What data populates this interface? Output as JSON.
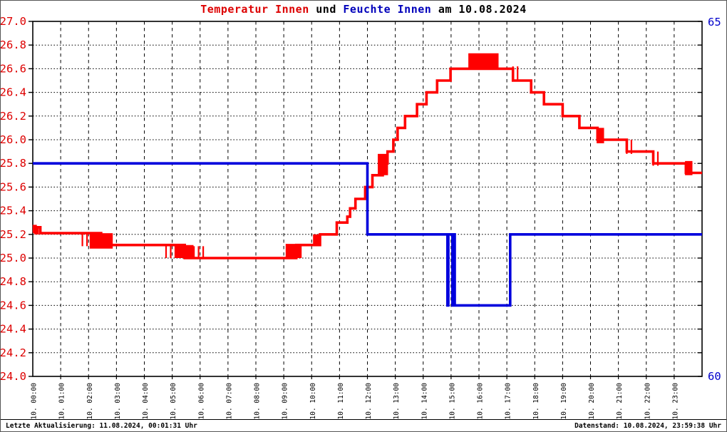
{
  "title": {
    "part1": "Temperatur Innen",
    "part2": " und ",
    "part3": "Feuchte Innen",
    "part4": " am 10.08.2024"
  },
  "footer": {
    "left": "Letzte Aktualisierung: 11.08.2024, 00:01:31 Uhr",
    "right": "Datenstand: 10.08.2024, 23:59:38 Uhr"
  },
  "colors": {
    "temp_line": "#ff0000",
    "humidity_line": "#0000dd",
    "temp_label": "#dd0000",
    "humidity_label": "#0000cc",
    "grid": "#000000",
    "frame": "#000000"
  },
  "chart_data": {
    "type": "line",
    "title": "Temperatur Innen und Feuchte Innen am 10.08.2024",
    "grid": true,
    "x_axis": {
      "unit": "hour",
      "range": [
        0,
        24
      ],
      "tick_interval_hours": 1,
      "tick_labels": [
        "10. 00:00",
        "10. 01:00",
        "10. 02:00",
        "10. 03:00",
        "10. 04:00",
        "10. 05:00",
        "10. 06:00",
        "10. 07:00",
        "10. 08:00",
        "10. 09:00",
        "10. 10:00",
        "10. 11:00",
        "10. 12:00",
        "10. 13:00",
        "10. 14:00",
        "10. 15:00",
        "10. 16:00",
        "10. 17:00",
        "10. 18:00",
        "10. 19:00",
        "10. 20:00",
        "10. 21:00",
        "10. 22:00",
        "10. 23:00"
      ]
    },
    "left_axis": {
      "series": "Temperatur Innen",
      "range": [
        24.0,
        27.0
      ],
      "tick_step": 0.2,
      "tick_labels": [
        "27.0",
        "26.8",
        "26.6",
        "26.4",
        "26.2",
        "26.0",
        "25.8",
        "25.6",
        "25.4",
        "25.2",
        "25.0",
        "24.8",
        "24.6",
        "24.4",
        "24.2",
        "24.0"
      ]
    },
    "right_axis": {
      "series": "Feuchte Innen",
      "range": [
        60,
        65
      ],
      "tick_labels": [
        "65",
        "60"
      ]
    },
    "series": [
      {
        "name": "Temperatur Innen",
        "unit": "°C",
        "axis": "left",
        "color": "#ff0000",
        "step_points": [
          [
            0,
            25.22
          ],
          [
            0.04,
            25.22
          ],
          [
            0.04,
            25.27
          ],
          [
            0.1,
            25.27
          ],
          [
            0.1,
            25.21
          ],
          [
            0.17,
            25.21
          ],
          [
            0.17,
            25.26
          ],
          [
            0.27,
            25.26
          ],
          [
            0.27,
            25.21
          ],
          [
            1.78,
            25.21
          ],
          [
            2.45,
            25.11
          ],
          [
            4.8,
            25.11
          ],
          [
            5.45,
            25.0
          ],
          [
            9.1,
            25.0
          ],
          [
            9.45,
            25.11
          ],
          [
            10.1,
            25.11
          ],
          [
            10.3,
            25.2
          ],
          [
            10.9,
            25.2
          ],
          [
            10.9,
            25.3
          ],
          [
            11.28,
            25.3
          ],
          [
            11.28,
            25.35
          ],
          [
            11.38,
            25.35
          ],
          [
            11.38,
            25.42
          ],
          [
            11.57,
            25.42
          ],
          [
            11.57,
            25.5
          ],
          [
            11.92,
            25.5
          ],
          [
            11.92,
            25.6
          ],
          [
            12.18,
            25.6
          ],
          [
            12.18,
            25.7
          ],
          [
            12.42,
            25.7
          ],
          [
            12.55,
            25.8
          ],
          [
            12.72,
            25.85
          ],
          [
            12.72,
            25.9
          ],
          [
            12.93,
            25.9
          ],
          [
            12.93,
            26.0
          ],
          [
            13.08,
            26.0
          ],
          [
            13.08,
            26.1
          ],
          [
            13.35,
            26.1
          ],
          [
            13.35,
            26.2
          ],
          [
            13.78,
            26.2
          ],
          [
            13.78,
            26.3
          ],
          [
            14.12,
            26.3
          ],
          [
            14.12,
            26.4
          ],
          [
            14.5,
            26.4
          ],
          [
            14.5,
            26.5
          ],
          [
            14.98,
            26.5
          ],
          [
            14.98,
            26.6
          ],
          [
            16.72,
            26.6
          ],
          [
            17.22,
            26.6
          ],
          [
            17.22,
            26.5
          ],
          [
            17.87,
            26.5
          ],
          [
            17.87,
            26.4
          ],
          [
            18.33,
            26.4
          ],
          [
            18.33,
            26.3
          ],
          [
            19.0,
            26.3
          ],
          [
            19.0,
            26.2
          ],
          [
            19.6,
            26.2
          ],
          [
            19.6,
            26.1
          ],
          [
            20.25,
            26.1
          ],
          [
            20.25,
            26.0
          ],
          [
            21.3,
            26.0
          ],
          [
            21.3,
            25.9
          ],
          [
            22.25,
            25.9
          ],
          [
            22.25,
            25.8
          ],
          [
            23.42,
            25.8
          ],
          [
            23.42,
            25.72
          ],
          [
            24,
            25.72
          ]
        ],
        "noise_bands": [
          {
            "from": 1.78,
            "to": 2.07,
            "low": 25.1,
            "high": 25.21,
            "density": "sparse"
          },
          {
            "from": 2.07,
            "to": 2.87,
            "low": 25.08,
            "high": 25.21,
            "density": "dense"
          },
          {
            "from": 4.78,
            "to": 5.12,
            "low": 25.0,
            "high": 25.11,
            "density": "sparse"
          },
          {
            "from": 5.12,
            "to": 5.78,
            "low": 25.0,
            "high": 25.11,
            "density": "dense"
          },
          {
            "from": 5.78,
            "to": 6.17,
            "low": 25.0,
            "high": 25.1,
            "density": "sparse"
          },
          {
            "from": 9.1,
            "to": 9.65,
            "low": 25.0,
            "high": 25.12,
            "density": "dense"
          },
          {
            "from": 10.08,
            "to": 10.33,
            "low": 25.12,
            "high": 25.2,
            "density": "dense"
          },
          {
            "from": 12.4,
            "to": 12.72,
            "low": 25.7,
            "high": 25.88,
            "density": "dense"
          },
          {
            "from": 15.65,
            "to": 16.72,
            "low": 26.6,
            "high": 26.73,
            "density": "dense"
          },
          {
            "from": 17.22,
            "to": 17.4,
            "low": 26.5,
            "high": 26.62,
            "density": "sparse"
          },
          {
            "from": 20.25,
            "to": 20.5,
            "low": 25.97,
            "high": 26.1,
            "density": "dense"
          },
          {
            "from": 21.3,
            "to": 21.5,
            "low": 25.88,
            "high": 26.0,
            "density": "sparse"
          },
          {
            "from": 22.25,
            "to": 22.5,
            "low": 25.78,
            "high": 25.9,
            "density": "sparse"
          },
          {
            "from": 23.42,
            "to": 23.65,
            "low": 25.7,
            "high": 25.82,
            "density": "dense"
          }
        ]
      },
      {
        "name": "Feuchte Innen",
        "unit": "%",
        "axis": "right",
        "color": "#0000dd",
        "step_points": [
          [
            0,
            63
          ],
          [
            12.0,
            63
          ],
          [
            12.0,
            62
          ],
          [
            14.87,
            62
          ],
          [
            14.87,
            61
          ],
          [
            14.9,
            61
          ],
          [
            14.9,
            62
          ],
          [
            15.05,
            62
          ],
          [
            15.05,
            61
          ],
          [
            15.1,
            61
          ],
          [
            15.1,
            62
          ],
          [
            15.13,
            62
          ],
          [
            15.13,
            61
          ],
          [
            17.12,
            61
          ],
          [
            17.12,
            62
          ],
          [
            24,
            62
          ]
        ],
        "noise_bands": []
      }
    ]
  }
}
